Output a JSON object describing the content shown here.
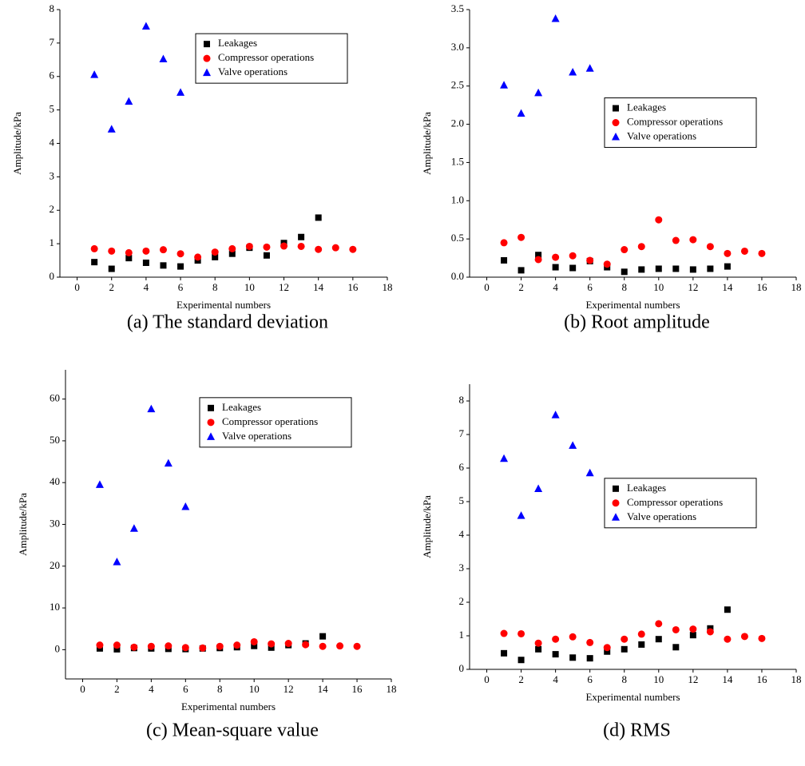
{
  "chart_data": [
    {
      "type": "scatter",
      "title": "(a) The standard deviation",
      "xlabel": "Experimental numbers",
      "ylabel": "Amplitude/kPa",
      "xlim": [
        -1,
        18
      ],
      "xticks": [
        0,
        2,
        4,
        6,
        8,
        10,
        12,
        14,
        16,
        18
      ],
      "ylim": [
        0,
        8
      ],
      "yticks": [
        0,
        1,
        2,
        3,
        4,
        5,
        6,
        7,
        8
      ],
      "legend": "upper right",
      "series": [
        {
          "name": "Leakages",
          "color": "#000000",
          "marker": "square",
          "x": [
            1,
            2,
            3,
            4,
            5,
            6,
            7,
            8,
            9,
            10,
            11,
            12,
            13,
            14
          ],
          "values": [
            0.45,
            0.25,
            0.57,
            0.43,
            0.35,
            0.32,
            0.5,
            0.6,
            0.7,
            0.88,
            0.65,
            1.02,
            1.2,
            1.78
          ]
        },
        {
          "name": "Compressor operations",
          "color": "#ff0000",
          "marker": "circle",
          "x": [
            1,
            2,
            3,
            4,
            5,
            6,
            7,
            8,
            9,
            10,
            11,
            12,
            13,
            14,
            15,
            16
          ],
          "values": [
            0.85,
            0.78,
            0.73,
            0.78,
            0.82,
            0.7,
            0.6,
            0.75,
            0.85,
            0.92,
            0.9,
            0.93,
            0.92,
            0.83,
            0.88,
            0.83
          ]
        },
        {
          "name": "Valve operations",
          "color": "#0000ff",
          "marker": "triangle",
          "x": [
            1,
            2,
            3,
            4,
            5,
            6
          ],
          "values": [
            6.05,
            4.42,
            5.25,
            7.5,
            6.52,
            5.52
          ]
        }
      ]
    },
    {
      "type": "scatter",
      "title": "(b) Root amplitude",
      "xlabel": "Experimental numbers",
      "ylabel": "Amplitude/kPa",
      "xlim": [
        -1,
        18
      ],
      "xticks": [
        0,
        2,
        4,
        6,
        8,
        10,
        12,
        14,
        16,
        18
      ],
      "ylim": [
        0,
        3.5
      ],
      "yticks": [
        {
          "value": 0,
          "label": "0.0"
        },
        0.5,
        {
          "value": 1,
          "label": "1.0"
        },
        1.5,
        {
          "value": 2,
          "label": "2.0"
        },
        2.5,
        {
          "value": 3,
          "label": "3.0"
        },
        3.5
      ],
      "legend": "center right",
      "series": [
        {
          "name": "Leakages",
          "color": "#000000",
          "marker": "square",
          "x": [
            1,
            2,
            3,
            4,
            5,
            6,
            7,
            8,
            9,
            10,
            11,
            12,
            13,
            14
          ],
          "values": [
            0.22,
            0.09,
            0.29,
            0.13,
            0.12,
            0.21,
            0.13,
            0.07,
            0.1,
            0.11,
            0.11,
            0.1,
            0.11,
            0.14
          ]
        },
        {
          "name": "Compressor operations",
          "color": "#ff0000",
          "marker": "circle",
          "x": [
            1,
            2,
            3,
            4,
            5,
            6,
            7,
            8,
            9,
            10,
            11,
            12,
            13,
            14,
            15,
            16
          ],
          "values": [
            0.45,
            0.52,
            0.23,
            0.26,
            0.28,
            0.22,
            0.17,
            0.36,
            0.4,
            0.75,
            0.48,
            0.49,
            0.4,
            0.31,
            0.34,
            0.31
          ]
        },
        {
          "name": "Valve operations",
          "color": "#0000ff",
          "marker": "triangle",
          "x": [
            1,
            2,
            3,
            4,
            5,
            6
          ],
          "values": [
            2.51,
            2.14,
            2.41,
            3.38,
            2.68,
            2.73
          ]
        }
      ]
    },
    {
      "type": "scatter",
      "title": "(c) Mean-square value",
      "xlabel": "Experimental numbers",
      "ylabel": "Amplitude/kPa",
      "xlim": [
        -1,
        18
      ],
      "xticks": [
        0,
        2,
        4,
        6,
        8,
        10,
        12,
        14,
        16,
        18
      ],
      "ylim": [
        -7,
        67
      ],
      "yticks": [
        0,
        10,
        20,
        30,
        40,
        50,
        60
      ],
      "legend": "upper right",
      "series": [
        {
          "name": "Leakages",
          "color": "#000000",
          "marker": "square",
          "x": [
            1,
            2,
            3,
            4,
            5,
            6,
            7,
            8,
            9,
            10,
            11,
            12,
            13,
            14
          ],
          "values": [
            0.3,
            0.1,
            0.4,
            0.3,
            0.2,
            0.15,
            0.3,
            0.4,
            0.6,
            0.9,
            0.5,
            1.1,
            1.5,
            3.2
          ]
        },
        {
          "name": "Compressor operations",
          "color": "#ff0000",
          "marker": "circle",
          "x": [
            1,
            2,
            3,
            4,
            5,
            6,
            7,
            8,
            9,
            10,
            11,
            12,
            13,
            14,
            15,
            16
          ],
          "values": [
            1.1,
            1.1,
            0.6,
            0.8,
            0.9,
            0.5,
            0.4,
            0.8,
            1.1,
            1.9,
            1.4,
            1.5,
            1.2,
            0.8,
            0.9,
            0.8
          ]
        },
        {
          "name": "Valve operations",
          "color": "#0000ff",
          "marker": "triangle",
          "x": [
            1,
            2,
            3,
            4,
            5,
            6
          ],
          "values": [
            39.5,
            21,
            29,
            57.6,
            44.6,
            34.2
          ]
        }
      ]
    },
    {
      "type": "scatter",
      "title": "(d) RMS",
      "xlabel": "Experimental numbers",
      "ylabel": "Amplitude/kPa",
      "xlim": [
        -1,
        18
      ],
      "xticks": [
        0,
        2,
        4,
        6,
        8,
        10,
        12,
        14,
        16,
        18
      ],
      "ylim": [
        0,
        8.5
      ],
      "yticks": [
        0,
        1,
        2,
        3,
        4,
        5,
        6,
        7,
        8
      ],
      "legend": "center right",
      "series": [
        {
          "name": "Leakages",
          "color": "#000000",
          "marker": "square",
          "x": [
            1,
            2,
            3,
            4,
            5,
            6,
            7,
            8,
            9,
            10,
            11,
            12,
            13,
            14
          ],
          "values": [
            0.48,
            0.28,
            0.6,
            0.45,
            0.35,
            0.33,
            0.53,
            0.6,
            0.74,
            0.9,
            0.66,
            1.02,
            1.22,
            1.78
          ]
        },
        {
          "name": "Compressor operations",
          "color": "#ff0000",
          "marker": "circle",
          "x": [
            1,
            2,
            3,
            4,
            5,
            6,
            7,
            8,
            9,
            10,
            11,
            12,
            13,
            14,
            15,
            16
          ],
          "values": [
            1.07,
            1.06,
            0.78,
            0.9,
            0.97,
            0.8,
            0.65,
            0.9,
            1.05,
            1.36,
            1.18,
            1.2,
            1.12,
            0.9,
            0.98,
            0.92
          ]
        },
        {
          "name": "Valve operations",
          "color": "#0000ff",
          "marker": "triangle",
          "x": [
            1,
            2,
            3,
            4,
            5,
            6
          ],
          "values": [
            6.28,
            4.58,
            5.38,
            7.58,
            6.67,
            5.85
          ]
        }
      ]
    }
  ]
}
